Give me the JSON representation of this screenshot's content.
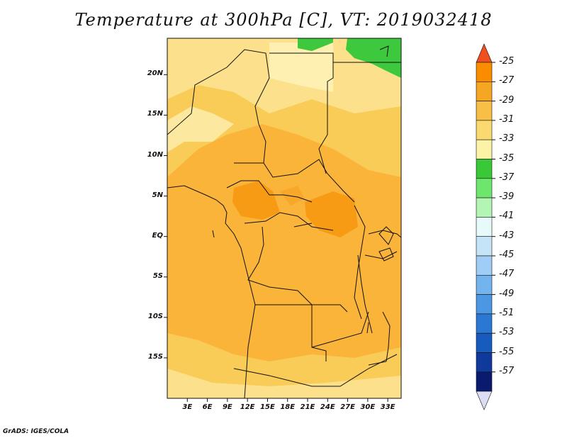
{
  "title": "Temperature at 300hPa [C], VT: 2019032418",
  "credit": "GrADS: IGES/COLA",
  "map": {
    "region": "Central Africa",
    "lat_ticks": [
      "20N",
      "15N",
      "10N",
      "5N",
      "EQ",
      "5S",
      "10S",
      "15S"
    ],
    "lat_values": [
      20,
      15,
      10,
      5,
      0,
      -5,
      -10,
      -15
    ],
    "lon_ticks": [
      "3E",
      "6E",
      "9E",
      "12E",
      "15E",
      "18E",
      "21E",
      "24E",
      "27E",
      "30E",
      "33E"
    ],
    "lon_values": [
      3,
      6,
      9,
      12,
      15,
      18,
      21,
      24,
      27,
      30,
      33
    ],
    "lon_range": [
      0,
      35
    ],
    "lat_range": [
      -20,
      24.5
    ]
  },
  "colorbar": {
    "labels": [
      "-25",
      "-27",
      "-29",
      "-31",
      "-33",
      "-35",
      "-37",
      "-39",
      "-41",
      "-43",
      "-45",
      "-47",
      "-49",
      "-51",
      "-53",
      "-55",
      "-57"
    ],
    "colors": [
      "#f0501e",
      "#fa8c00",
      "#f5a623",
      "#f7bf45",
      "#fad970",
      "#fdf3a6",
      "#38c838",
      "#6ee66e",
      "#b4f5b4",
      "#e6fafa",
      "#c6e4f8",
      "#a0cdf5",
      "#73b3ee",
      "#4c97e4",
      "#2a78d4",
      "#165bbd",
      "#0f3a9c",
      "#0a1a6e",
      "#dcdcf5"
    ]
  }
}
